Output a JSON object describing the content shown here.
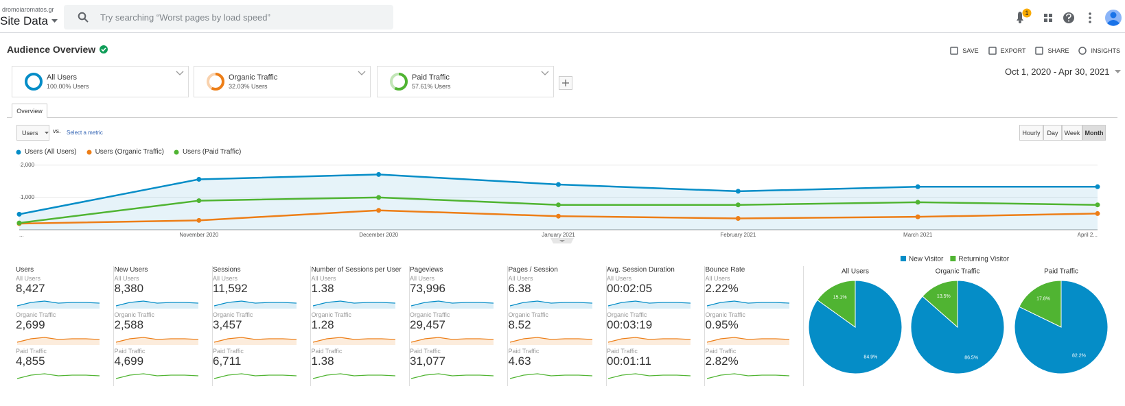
{
  "header": {
    "site": "dromoiaromatos.gr",
    "title": "Site Data",
    "search_placeholder": "Try searching “Worst pages by load speed”",
    "notifications": "1"
  },
  "report": {
    "title": "Audience Overview",
    "actions": [
      "SAVE",
      "EXPORT",
      "SHARE",
      "INSIGHTS"
    ],
    "date_range": "Oct 1, 2020 - Apr 30, 2021",
    "tab": "Overview",
    "metric": "Users",
    "vs": "vs.",
    "select_metric": "Select a metric",
    "granularity": [
      "Hourly",
      "Day",
      "Week",
      "Month"
    ]
  },
  "segments": [
    {
      "name": "All Users",
      "share": "100.00% Users",
      "color": "#058dc7"
    },
    {
      "name": "Organic Traffic",
      "share": "32.03% Users",
      "color": "#ed7e17"
    },
    {
      "name": "Paid Traffic",
      "share": "57.61% Users",
      "color": "#50b432"
    }
  ],
  "metrics": {
    "row_labels": [
      "All Users",
      "Organic Traffic",
      "Paid Traffic"
    ],
    "row_colors": [
      "#058dc7",
      "#ed7e17",
      "#50b432"
    ],
    "columns": [
      {
        "name": "Users",
        "rows": [
          "8,427",
          "2,699",
          "4,855"
        ]
      },
      {
        "name": "New Users",
        "rows": [
          "8,380",
          "2,588",
          "4,699"
        ]
      },
      {
        "name": "Sessions",
        "rows": [
          "11,592",
          "3,457",
          "6,711"
        ]
      },
      {
        "name": "Number of Sessions per User",
        "rows": [
          "1.38",
          "1.28",
          "1.38"
        ]
      },
      {
        "name": "Pageviews",
        "rows": [
          "73,996",
          "29,457",
          "31,077"
        ]
      },
      {
        "name": "Pages / Session",
        "rows": [
          "6.38",
          "8.52",
          "4.63"
        ]
      },
      {
        "name": "Avg. Session Duration",
        "rows": [
          "00:02:05",
          "00:03:19",
          "00:01:11"
        ]
      },
      {
        "name": "Bounce Rate",
        "rows": [
          "2.22%",
          "0.95%",
          "2.82%"
        ]
      }
    ]
  },
  "chart_data": [
    {
      "type": "line",
      "categories": [
        "...",
        "November 2020",
        "December 2020",
        "January 2021",
        "February 2021",
        "March 2021",
        "April 2..."
      ],
      "series": [
        {
          "name": "Users (All Users)",
          "color": "#058dc7",
          "values": [
            480,
            1560,
            1710,
            1400,
            1190,
            1330,
            1330
          ]
        },
        {
          "name": "Users (Organic Traffic)",
          "color": "#ed7e17",
          "values": [
            190,
            290,
            600,
            420,
            350,
            400,
            500
          ]
        },
        {
          "name": "Users (Paid Traffic)",
          "color": "#50b432",
          "values": [
            210,
            900,
            1000,
            770,
            770,
            850,
            770
          ]
        }
      ],
      "ylim": [
        0,
        2100
      ],
      "yticks": [
        {
          "value": 1000,
          "label": "1,000"
        },
        {
          "value": 2000,
          "label": "2,000"
        }
      ],
      "grid": true,
      "fill_first_series": true
    },
    {
      "type": "pie",
      "title": "All Users",
      "categories": [
        "New Visitor",
        "Returning Visitor"
      ],
      "colors": [
        "#058dc7",
        "#50b432"
      ],
      "values": [
        84.9,
        15.1
      ],
      "value_labels": [
        "84.9%",
        "15.1%"
      ]
    },
    {
      "type": "pie",
      "title": "Organic Traffic",
      "categories": [
        "New Visitor",
        "Returning Visitor"
      ],
      "colors": [
        "#058dc7",
        "#50b432"
      ],
      "values": [
        86.5,
        13.5
      ],
      "value_labels": [
        "86.5%",
        "13.5%"
      ]
    },
    {
      "type": "pie",
      "title": "Paid Traffic",
      "categories": [
        "New Visitor",
        "Returning Visitor"
      ],
      "colors": [
        "#058dc7",
        "#50b432"
      ],
      "values": [
        82.2,
        17.8
      ],
      "value_labels": [
        "82.2%",
        "17.8%"
      ]
    }
  ]
}
